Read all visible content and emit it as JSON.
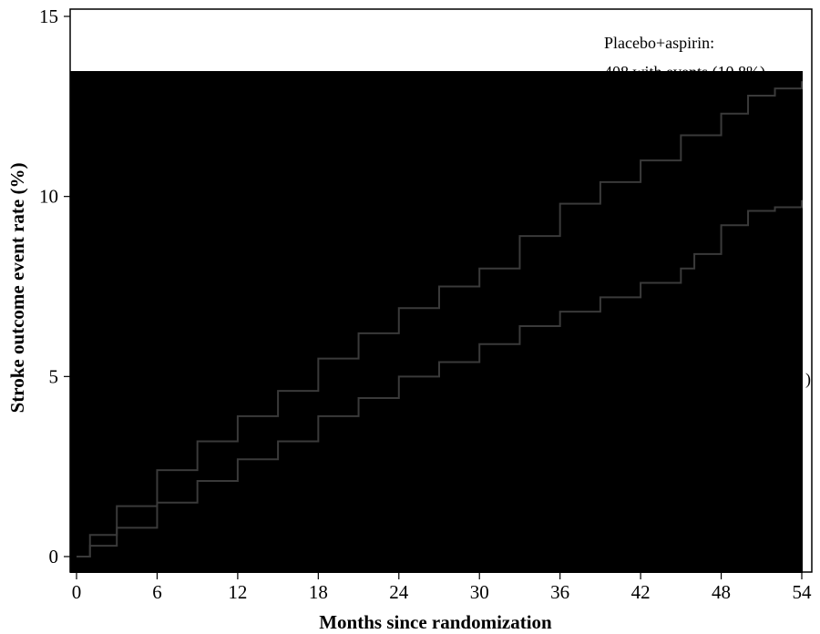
{
  "chart_data": {
    "type": "line",
    "title": "",
    "xlabel": "Months since randomization",
    "ylabel": "Stroke outcome event  rate (%)",
    "xlim": [
      0,
      54
    ],
    "ylim": [
      0,
      15
    ],
    "x_ticks": [
      "0",
      "6",
      "12",
      "18",
      "24",
      "30",
      "36",
      "42",
      "48",
      "54"
    ],
    "y_ticks": [
      "0",
      "5",
      "10",
      "15"
    ],
    "grid": false,
    "plot_background": "#000000",
    "line_color": "#3a3a3a",
    "series": [
      {
        "x": [
          0,
          1,
          3,
          6,
          9,
          12,
          15,
          18,
          21,
          24,
          27,
          30,
          33,
          36,
          39,
          42,
          45,
          48,
          50,
          52,
          54
        ],
        "y": [
          0,
          0.6,
          1.4,
          2.4,
          3.2,
          3.9,
          4.6,
          5.5,
          6.2,
          6.9,
          7.5,
          8.0,
          8.9,
          9.8,
          10.4,
          11.0,
          11.7,
          12.3,
          12.8,
          13.0,
          13.2
        ]
      },
      {
        "x": [
          0,
          1,
          3,
          6,
          9,
          12,
          15,
          18,
          21,
          24,
          27,
          30,
          33,
          36,
          39,
          42,
          45,
          46,
          48,
          50,
          52,
          54
        ],
        "y": [
          0,
          0.3,
          0.8,
          1.5,
          2.1,
          2.7,
          3.2,
          3.9,
          4.4,
          5.0,
          5.4,
          5.9,
          6.4,
          6.8,
          7.2,
          7.6,
          8.0,
          8.4,
          9.2,
          9.6,
          9.7,
          9.9
        ]
      }
    ],
    "annotations": [
      {
        "id": "placebo",
        "lines": [
          "Placebo+aspirin:",
          "408 with events (10.8%)"
        ],
        "anchor": "top-right"
      },
      {
        "id": "partial",
        "lines": [
          ")"
        ],
        "anchor": "right"
      }
    ]
  }
}
